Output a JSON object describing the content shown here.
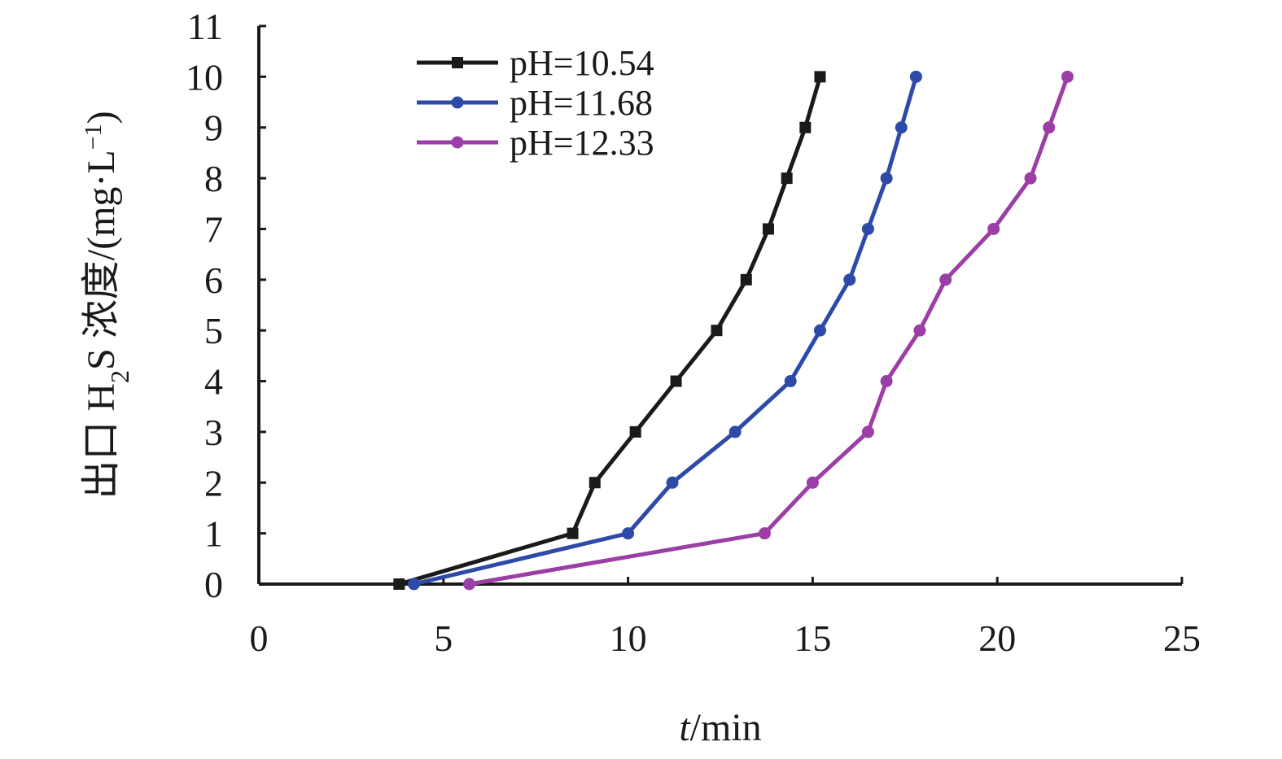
{
  "chart_data": {
    "type": "line",
    "xlabel_italic": "t",
    "xlabel_rest": "/min",
    "ylabel_main": "出口 H",
    "ylabel_sub": "2",
    "ylabel_rest": "S 浓度/(mg·L",
    "ylabel_sup": "−1",
    "ylabel_close": ")",
    "xlim": [
      0,
      25
    ],
    "ylim": [
      0,
      11
    ],
    "xticks": [
      "0",
      "5",
      "10",
      "15",
      "20",
      "25"
    ],
    "yticks": [
      "0",
      "1",
      "2",
      "3",
      "4",
      "5",
      "6",
      "7",
      "8",
      "9",
      "10",
      "11"
    ],
    "grid": false,
    "legend_position": "top-left",
    "series": [
      {
        "name": "pH=10.54",
        "color": "#1a1a1a",
        "marker": "square",
        "x": [
          3.8,
          8.5,
          9.1,
          10.2,
          11.3,
          12.4,
          13.2,
          13.8,
          14.3,
          14.8,
          15.2
        ],
        "y": [
          0,
          1,
          2,
          3,
          4,
          5,
          6,
          7,
          8,
          9,
          10
        ]
      },
      {
        "name": "pH=11.68",
        "color": "#2e4aa8",
        "marker": "circle",
        "x": [
          4.2,
          10.0,
          11.2,
          12.9,
          14.4,
          15.2,
          16.0,
          16.5,
          17.0,
          17.4,
          17.8
        ],
        "y": [
          0,
          1,
          2,
          3,
          4,
          5,
          6,
          7,
          8,
          9,
          10
        ]
      },
      {
        "name": "pH=12.33",
        "color": "#9b3ea6",
        "marker": "circle",
        "x": [
          5.7,
          13.7,
          15.0,
          16.5,
          17.0,
          17.9,
          18.6,
          19.9,
          20.9,
          21.4,
          21.9
        ],
        "y": [
          0,
          1,
          2,
          3,
          4,
          5,
          6,
          7,
          8,
          9,
          10
        ]
      }
    ]
  }
}
